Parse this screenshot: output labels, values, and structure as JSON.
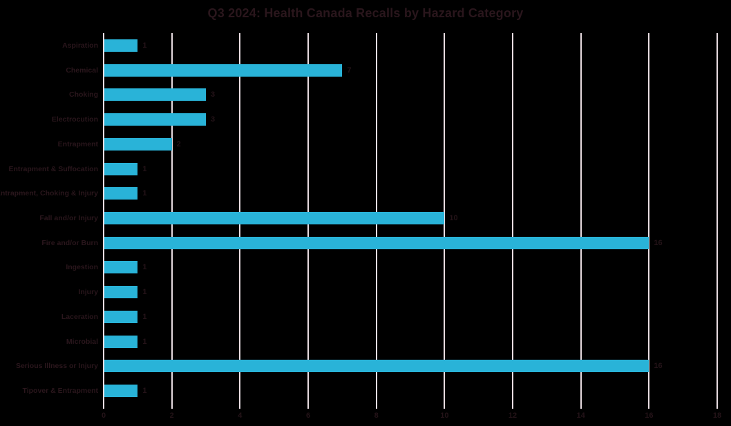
{
  "title": "Q3 2024: Health Canada Recalls by Hazard Category",
  "colors": {
    "background": "#000000",
    "bar": "#29b3d8",
    "gridline": "#e9dde2",
    "title_text": "#2a161c",
    "label_text": "#241318"
  },
  "chart_data": {
    "type": "bar",
    "orientation": "horizontal",
    "title": "Q3 2024: Health Canada Recalls by Hazard Category",
    "categories": [
      "Aspiration",
      "Chemical",
      "Choking",
      "Electrocution",
      "Entrapment",
      "Entrapment & Suffocation",
      "Entrapment, Choking & Injury",
      "Fall and/or Injury",
      "Fire and/or Burn",
      "Ingestion",
      "Injury",
      "Laceration",
      "Microbial",
      "Serious Illness or Injury",
      "Tipover & Entrapment"
    ],
    "values": [
      1,
      7,
      3,
      3,
      2,
      1,
      1,
      10,
      16,
      1,
      1,
      1,
      1,
      16,
      1
    ],
    "xlabel": "",
    "ylabel": "",
    "xlim": [
      0,
      18
    ],
    "xticks": [
      0,
      2,
      4,
      6,
      8,
      10,
      12,
      14,
      16,
      18
    ],
    "grid": "vertical-only",
    "data_labels": true,
    "legend": "none"
  }
}
